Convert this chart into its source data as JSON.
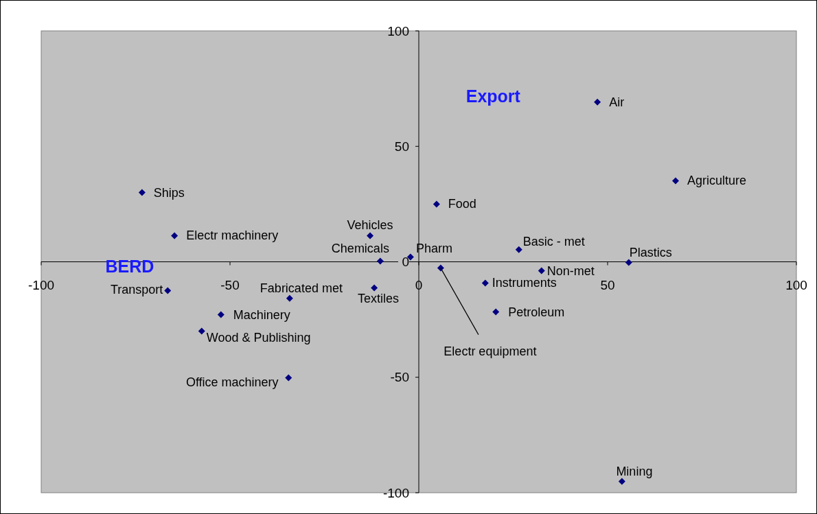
{
  "chart_data": {
    "type": "scatter",
    "xlabel": "BERD",
    "ylabel": "Export",
    "marker": "diamond",
    "grid": false,
    "xlim": [
      -100,
      100
    ],
    "ylim": [
      -100,
      100
    ],
    "xticks": [
      -100,
      -50,
      0,
      50,
      100
    ],
    "yticks": [
      -100,
      -50,
      0,
      50,
      100
    ],
    "series": [
      {
        "color": "#000080",
        "x": [
          47.3,
          68,
          -73.3,
          4.7,
          -64.7,
          -12.9,
          26.5,
          -2.2,
          -10.2,
          55.6,
          5.8,
          32.5,
          17.6,
          -11.8,
          -66.5,
          -34.2,
          20.4,
          -52.4,
          -57.5,
          -34.5,
          53.8
        ],
        "values": [
          69.2,
          35.1,
          30,
          25,
          11.3,
          11.3,
          5.3,
          2.1,
          0.3,
          -0.3,
          -2.7,
          -3.9,
          -9.2,
          -11.3,
          -12.5,
          -15.8,
          -21.7,
          -22.9,
          -30,
          -50.2,
          -95.1
        ]
      }
    ],
    "annotations": [
      {
        "text": "Air",
        "x": 47.3,
        "y": 69.2
      },
      {
        "text": "Agriculture",
        "x": 68,
        "y": 35.1
      },
      {
        "text": "Ships",
        "x": -73.3,
        "y": 30
      },
      {
        "text": "Food",
        "x": 4.7,
        "y": 25
      },
      {
        "text": "Electr machinery",
        "x": -64.7,
        "y": 11.3
      },
      {
        "text": "Vehicles",
        "x": -12.9,
        "y": 11.3
      },
      {
        "text": "Basic - met",
        "x": 26.5,
        "y": 5.3
      },
      {
        "text": "Pharm",
        "x": -2.2,
        "y": 2.1
      },
      {
        "text": "Chemicals",
        "x": -10.2,
        "y": 0.3
      },
      {
        "text": "Plastics",
        "x": 55.6,
        "y": -0.3
      },
      {
        "text": "Electr equipment",
        "x": 5.8,
        "y": -2.7
      },
      {
        "text": "Non-met",
        "x": 32.5,
        "y": -3.9
      },
      {
        "text": "Instruments",
        "x": 17.6,
        "y": -9.2
      },
      {
        "text": "Textiles",
        "x": -11.8,
        "y": -11.3
      },
      {
        "text": "Transport",
        "x": -66.5,
        "y": -12.5
      },
      {
        "text": "Fabricated met",
        "x": -34.2,
        "y": -15.8
      },
      {
        "text": "Petroleum",
        "x": 20.4,
        "y": -21.7
      },
      {
        "text": "Machinery",
        "x": -52.4,
        "y": -22.9
      },
      {
        "text": "Wood & Publishing",
        "x": -57.5,
        "y": -30
      },
      {
        "text": "Office machinery",
        "x": -34.5,
        "y": -50.2
      },
      {
        "text": "Mining",
        "x": 53.8,
        "y": -95.1
      }
    ]
  }
}
